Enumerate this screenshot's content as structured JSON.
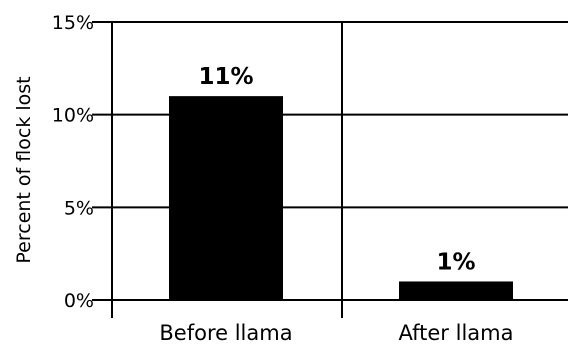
{
  "chart_data": {
    "type": "bar",
    "categories": [
      "Before llama",
      "After llama"
    ],
    "values": [
      11,
      1
    ],
    "data_labels": [
      "11%",
      "1%"
    ],
    "ylabel": "Percent of flock lost",
    "ylim": [
      0,
      15
    ],
    "yticks": [
      {
        "value": 0,
        "label": "0%"
      },
      {
        "value": 5,
        "label": "5%"
      },
      {
        "value": 10,
        "label": "10%"
      },
      {
        "value": 15,
        "label": "15%"
      }
    ],
    "grid": true,
    "bar_color": "#000000",
    "line_color": "#000000"
  }
}
